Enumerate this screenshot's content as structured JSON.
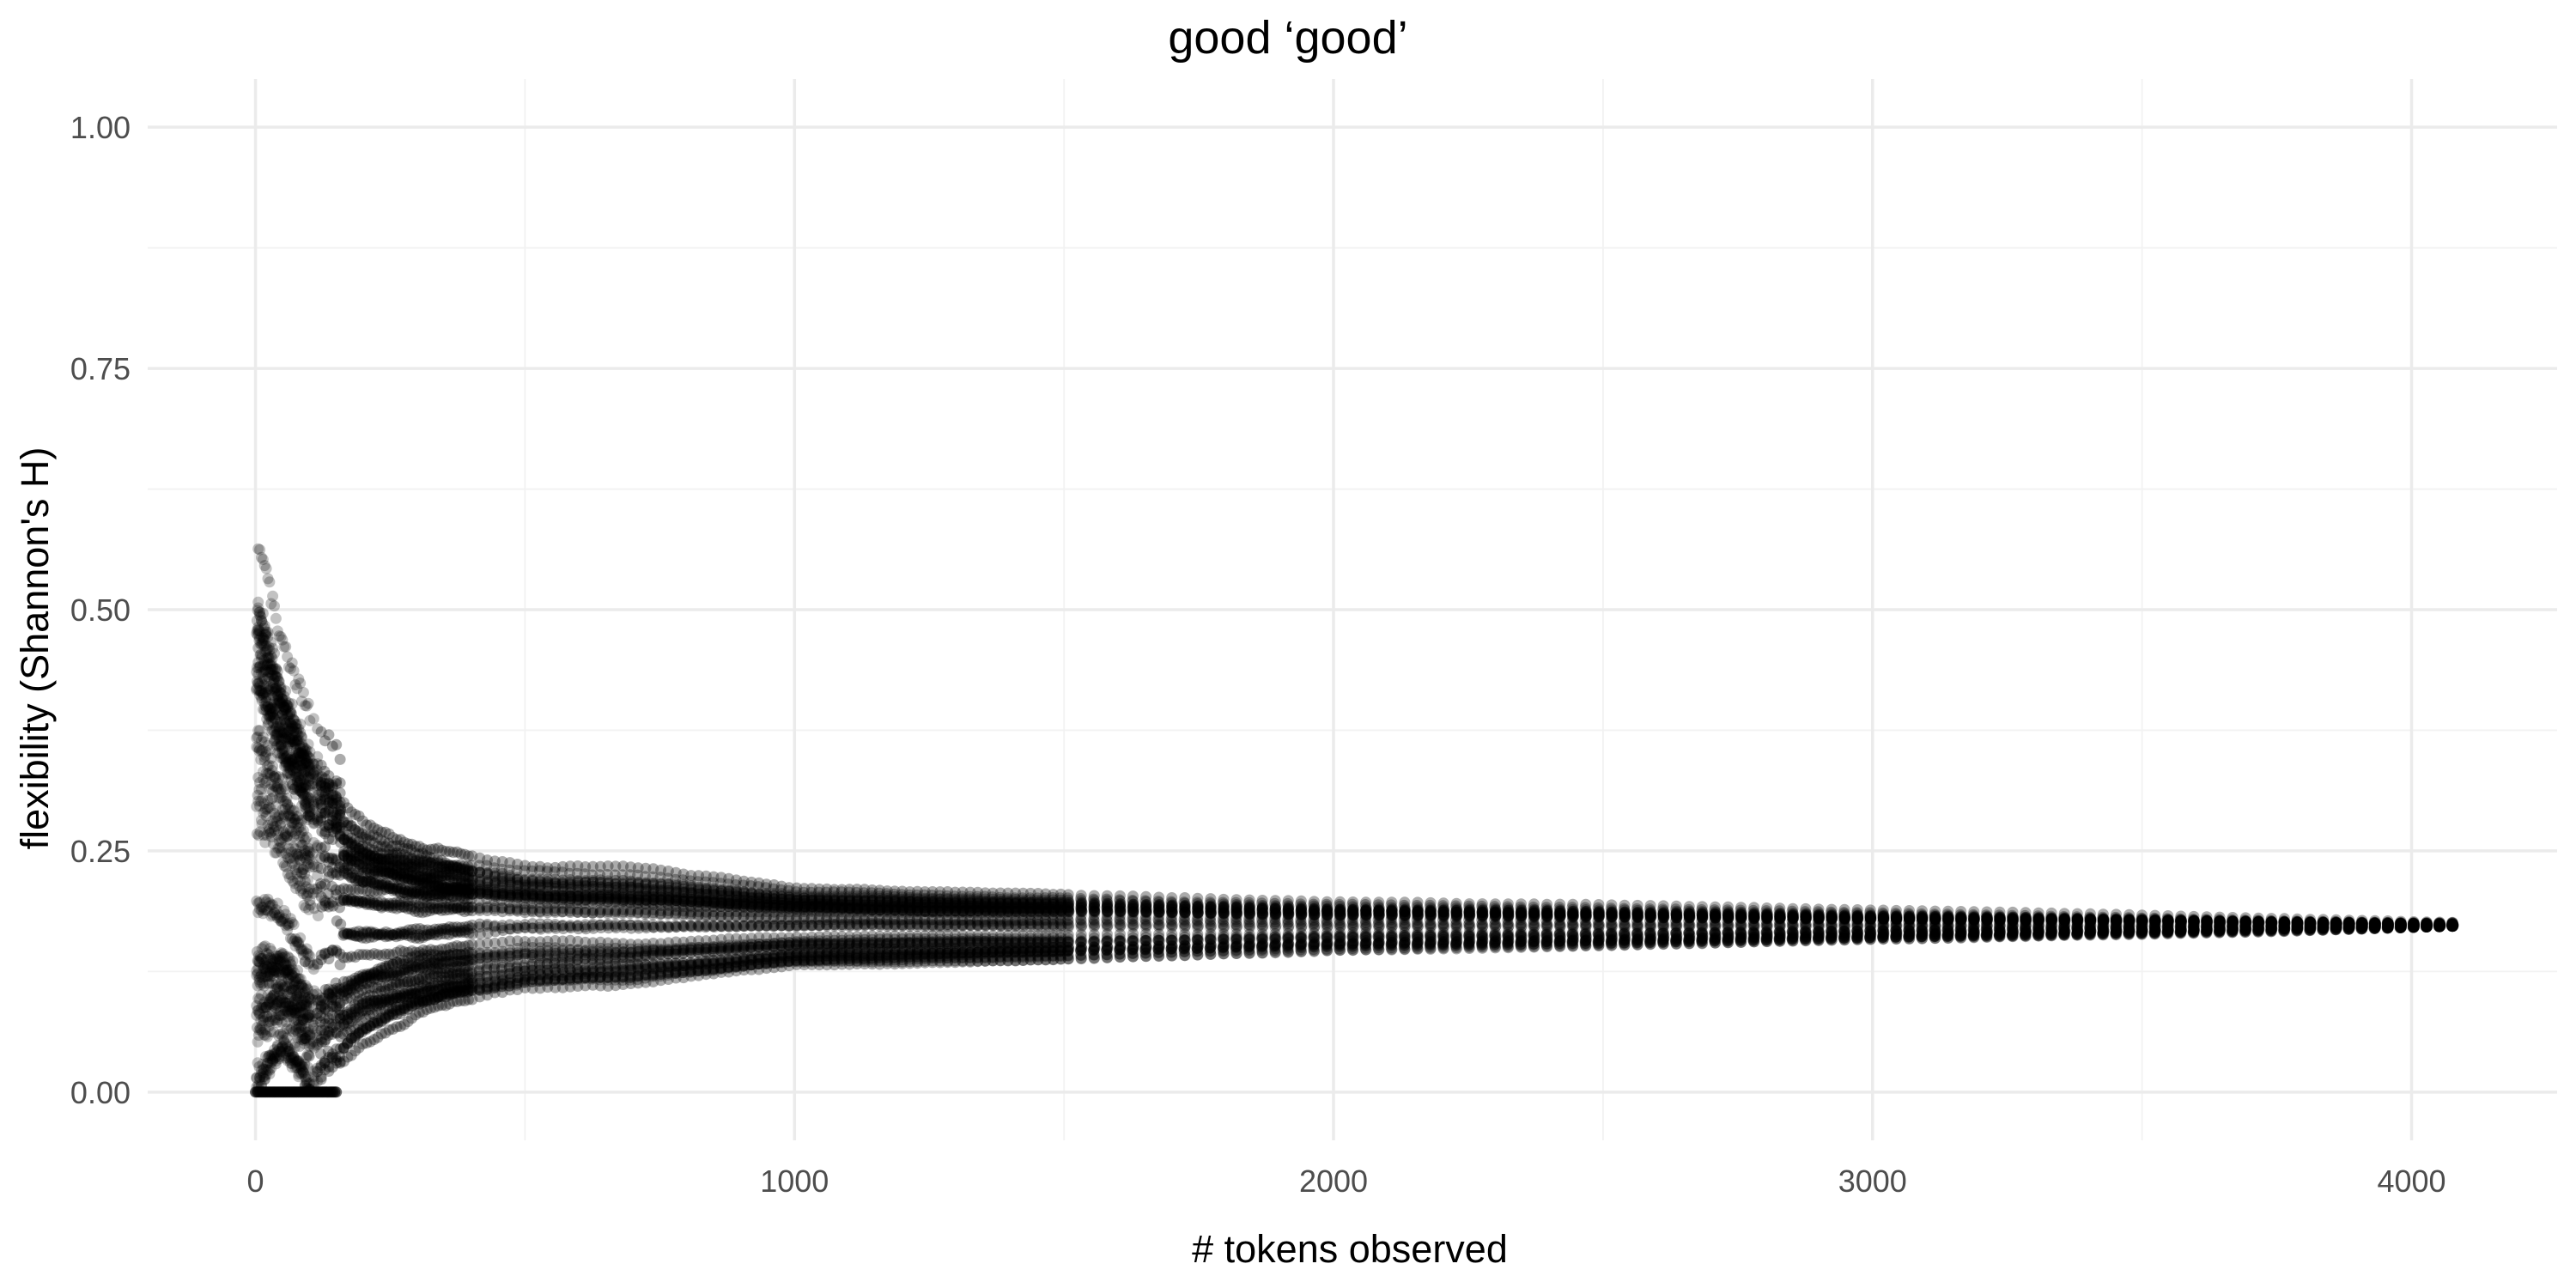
{
  "chart_data": {
    "type": "scatter",
    "title": "good ‘good’",
    "xlabel": "# tokens observed",
    "ylabel": "flexibility (Shannon's H)",
    "xlim": [
      -200,
      4270
    ],
    "ylim": [
      -0.05,
      1.05
    ],
    "x_ticks": [
      0,
      1000,
      2000,
      3000,
      4000
    ],
    "x_tick_labels": [
      "0",
      "1000",
      "2000",
      "3000",
      "4000"
    ],
    "y_ticks": [
      0.0,
      0.25,
      0.5,
      0.75,
      1.0
    ],
    "y_tick_labels": [
      "0.00",
      "0.25",
      "0.50",
      "0.75",
      "1.00"
    ],
    "grid": true,
    "legend": "none",
    "point_color": "#000000",
    "point_alpha": 0.15,
    "series_count": 40,
    "tokens_max": 4078,
    "asymptote": 0.173,
    "envelope": [
      {
        "x": 5,
        "lower": 0.0,
        "upper": 0.58
      },
      {
        "x": 50,
        "lower": 0.04,
        "upper": 0.47
      },
      {
        "x": 100,
        "lower": 0.0,
        "upper": 0.4
      },
      {
        "x": 150,
        "lower": 0.03,
        "upper": 0.36
      },
      {
        "x": 200,
        "lower": 0.03,
        "upper": 0.3
      },
      {
        "x": 300,
        "lower": 0.06,
        "upper": 0.27
      },
      {
        "x": 400,
        "lower": 0.07,
        "upper": 0.245
      },
      {
        "x": 500,
        "lower": 0.09,
        "upper": 0.24
      },
      {
        "x": 700,
        "lower": 0.1,
        "upper": 0.24
      },
      {
        "x": 1000,
        "lower": 0.13,
        "upper": 0.225
      },
      {
        "x": 1500,
        "lower": 0.13,
        "upper": 0.21
      },
      {
        "x": 2000,
        "lower": 0.14,
        "upper": 0.2
      },
      {
        "x": 2500,
        "lower": 0.145,
        "upper": 0.195
      },
      {
        "x": 3000,
        "lower": 0.155,
        "upper": 0.19
      },
      {
        "x": 3500,
        "lower": 0.162,
        "upper": 0.184
      },
      {
        "x": 4078,
        "lower": 0.172,
        "upper": 0.176
      }
    ],
    "zero_run": {
      "x_start": 0,
      "x_end": 150,
      "y": 0.0
    }
  }
}
